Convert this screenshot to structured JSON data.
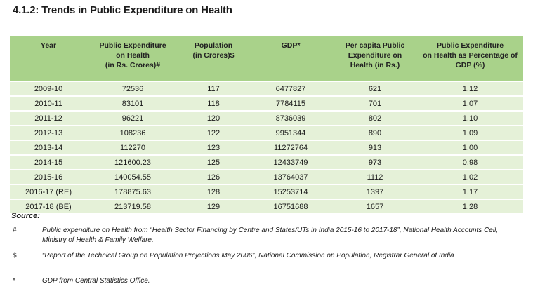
{
  "title": "4.1.2: Trends in Public Expenditure on Health",
  "table": {
    "headers": [
      [
        "Year"
      ],
      [
        "Public Expenditure",
        "on Health",
        "(in Rs. Crores)#"
      ],
      [
        "Population",
        "(in Crores)$"
      ],
      [
        "GDP*"
      ],
      [
        "Per capita Public",
        "Expenditure on",
        "Health (in Rs.)"
      ],
      [
        "Public Expenditure",
        "on Health as Percentage of",
        "GDP (%)"
      ]
    ],
    "rows": [
      [
        "2009-10",
        "72536",
        "117",
        "6477827",
        "621",
        "1.12"
      ],
      [
        "2010-11",
        "83101",
        "118",
        "7784115",
        "701",
        "1.07"
      ],
      [
        "2011-12",
        "96221",
        "120",
        "8736039",
        "802",
        "1.10"
      ],
      [
        "2012-13",
        "108236",
        "122",
        "9951344",
        "890",
        "1.09"
      ],
      [
        "2013-14",
        "112270",
        "123",
        "11272764",
        "913",
        "1.00"
      ],
      [
        "2014-15",
        "121600.23",
        "125",
        "12433749",
        "973",
        "0.98"
      ],
      [
        "2015-16",
        "140054.55",
        "126",
        "13764037",
        "1112",
        "1.02"
      ],
      [
        "2016-17 (RE)",
        "178875.63",
        "128",
        "15253714",
        "1397",
        "1.17"
      ],
      [
        "2017-18 (BE)",
        "213719.58",
        "129",
        "16751688",
        "1657",
        "1.28"
      ]
    ]
  },
  "source_label": "Source:",
  "notes": [
    {
      "symbol": "#",
      "text": "Public expenditure on Health from “Health Sector Financing by Centre and States/UTs in India 2015-16 to 2017-18”, National Health Accounts Cell, Ministry of Health & Family Welfare."
    },
    {
      "symbol": "$",
      "text": "“Report of the Technical Group on Population Projections May 2006”, National Commission on Population, Registrar General of India"
    },
    {
      "symbol": "*",
      "text": "GDP from Central Statistics Office."
    }
  ],
  "colors": {
    "header_bg": "#a9d28a",
    "row_bg": "#e5f1d8"
  }
}
